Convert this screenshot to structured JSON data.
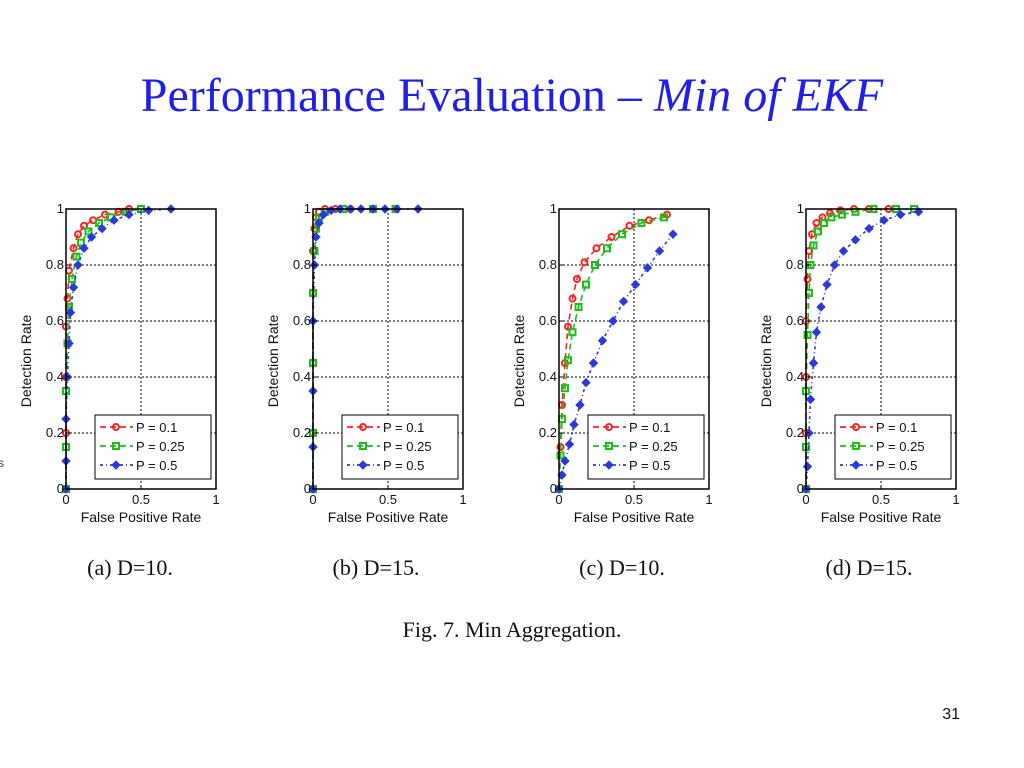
{
  "slide": {
    "title_main": "Performance Evaluation – ",
    "title_emphasis": "Min of EKF",
    "figure_caption": "Fig. 7.   Min Aggregation.",
    "page_number": "31",
    "stray_glyph": "s"
  },
  "chart_data": [
    {
      "type": "line",
      "caption": "(a)  D=10.",
      "xlabel": "False Positive Rate",
      "ylabel": "Detection Rate",
      "xlim": [
        0,
        1
      ],
      "ylim": [
        0,
        1
      ],
      "xticks": [
        "0",
        "0.5",
        "1"
      ],
      "yticks": [
        "0",
        "0.2",
        "0.4",
        "0.6",
        "0.8",
        "1"
      ],
      "grid": true,
      "legend_position": "bottom-right",
      "series": [
        {
          "name": "P = 0.1",
          "color": "#ff2020",
          "marker": "circle",
          "x": [
            0,
            0,
            0,
            0,
            0.01,
            0.02,
            0.05,
            0.08,
            0.12,
            0.18,
            0.26,
            0.35,
            0.42
          ],
          "y": [
            0,
            0.2,
            0.4,
            0.58,
            0.68,
            0.78,
            0.86,
            0.91,
            0.94,
            0.96,
            0.98,
            0.99,
            1.0
          ]
        },
        {
          "name": "P = 0.25",
          "color": "#18c018",
          "marker": "square",
          "x": [
            0,
            0,
            0,
            0.01,
            0.02,
            0.04,
            0.07,
            0.1,
            0.15,
            0.22,
            0.3,
            0.4,
            0.5
          ],
          "y": [
            0,
            0.15,
            0.35,
            0.52,
            0.65,
            0.75,
            0.83,
            0.88,
            0.92,
            0.95,
            0.97,
            0.99,
            1.0
          ]
        },
        {
          "name": "P = 0.5",
          "color": "#2a3ad8",
          "marker": "diamond",
          "x": [
            0,
            0,
            0,
            0.01,
            0.02,
            0.03,
            0.05,
            0.08,
            0.12,
            0.17,
            0.24,
            0.32,
            0.42,
            0.55,
            0.7
          ],
          "y": [
            0,
            0.1,
            0.25,
            0.4,
            0.52,
            0.63,
            0.72,
            0.8,
            0.86,
            0.9,
            0.93,
            0.96,
            0.98,
            0.995,
            1.0
          ]
        }
      ]
    },
    {
      "type": "line",
      "caption": "(b)  D=15.",
      "xlabel": "False Positive Rate",
      "ylabel": "Detection Rate",
      "xlim": [
        0,
        1
      ],
      "ylim": [
        0,
        1
      ],
      "xticks": [
        "0",
        "0.5",
        "1"
      ],
      "yticks": [
        "0",
        "0.2",
        "0.4",
        "0.6",
        "0.8",
        "1"
      ],
      "grid": true,
      "legend_position": "bottom-right",
      "series": [
        {
          "name": "P = 0.1",
          "color": "#ff2020",
          "marker": "circle",
          "x": [
            0,
            0,
            0,
            0,
            0,
            0.01,
            0.02,
            0.04,
            0.08,
            0.15,
            0.25
          ],
          "y": [
            0,
            0.2,
            0.45,
            0.7,
            0.85,
            0.93,
            0.97,
            0.99,
            1.0,
            1.0,
            1.0
          ]
        },
        {
          "name": "P = 0.25",
          "color": "#18c018",
          "marker": "square",
          "x": [
            0,
            0,
            0,
            0,
            0.01,
            0.02,
            0.04,
            0.08,
            0.2,
            0.4,
            0.55
          ],
          "y": [
            0,
            0.2,
            0.45,
            0.7,
            0.85,
            0.93,
            0.97,
            0.99,
            1.0,
            1.0,
            1.0
          ]
        },
        {
          "name": "P = 0.5",
          "color": "#2a3ad8",
          "marker": "diamond",
          "x": [
            0,
            0,
            0,
            0,
            0.01,
            0.02,
            0.04,
            0.07,
            0.12,
            0.18,
            0.25,
            0.32,
            0.4,
            0.48,
            0.56,
            0.7
          ],
          "y": [
            0,
            0.15,
            0.35,
            0.6,
            0.8,
            0.9,
            0.95,
            0.98,
            0.995,
            1.0,
            1.0,
            1.0,
            1.0,
            1.0,
            1.0,
            1.0
          ]
        }
      ]
    },
    {
      "type": "line",
      "caption": "(c)  D=10.",
      "xlabel": "False Positive Rate",
      "ylabel": "Detection Rate",
      "xlim": [
        0,
        1
      ],
      "ylim": [
        0,
        1
      ],
      "xticks": [
        "0",
        "0.5",
        "1"
      ],
      "yticks": [
        "0",
        "0.2",
        "0.4",
        "0.6",
        "0.8",
        "1"
      ],
      "grid": true,
      "legend_position": "bottom-right",
      "series": [
        {
          "name": "P = 0.1",
          "color": "#ff2020",
          "marker": "circle",
          "x": [
            0,
            0.01,
            0.02,
            0.04,
            0.06,
            0.09,
            0.12,
            0.17,
            0.25,
            0.35,
            0.47,
            0.6,
            0.72
          ],
          "y": [
            0,
            0.15,
            0.3,
            0.45,
            0.58,
            0.68,
            0.75,
            0.81,
            0.86,
            0.9,
            0.94,
            0.96,
            0.98
          ]
        },
        {
          "name": "P = 0.25",
          "color": "#18c018",
          "marker": "square",
          "x": [
            0,
            0.01,
            0.02,
            0.04,
            0.06,
            0.09,
            0.13,
            0.18,
            0.24,
            0.32,
            0.42,
            0.55,
            0.7
          ],
          "y": [
            0,
            0.12,
            0.25,
            0.36,
            0.46,
            0.56,
            0.65,
            0.73,
            0.8,
            0.86,
            0.91,
            0.95,
            0.97
          ]
        },
        {
          "name": "P = 0.5",
          "color": "#2a3ad8",
          "marker": "diamond",
          "x": [
            0,
            0.02,
            0.04,
            0.07,
            0.1,
            0.14,
            0.18,
            0.23,
            0.29,
            0.36,
            0.43,
            0.51,
            0.59,
            0.67,
            0.76
          ],
          "y": [
            0,
            0.05,
            0.1,
            0.16,
            0.23,
            0.3,
            0.38,
            0.45,
            0.53,
            0.6,
            0.67,
            0.73,
            0.79,
            0.85,
            0.91
          ]
        }
      ]
    },
    {
      "type": "line",
      "caption": "(d)  D=15.",
      "xlabel": "False Positive Rate",
      "ylabel": "Detection Rate",
      "xlim": [
        0,
        1
      ],
      "ylim": [
        0,
        1
      ],
      "xticks": [
        "0",
        "0.5",
        "1"
      ],
      "yticks": [
        "0",
        "0.2",
        "0.4",
        "0.6",
        "0.8",
        "1"
      ],
      "grid": true,
      "legend_position": "bottom-right",
      "series": [
        {
          "name": "P = 0.1",
          "color": "#ff2020",
          "marker": "circle",
          "x": [
            0,
            0,
            0,
            0,
            0.01,
            0.02,
            0.04,
            0.07,
            0.11,
            0.16,
            0.23,
            0.32,
            0.42,
            0.55
          ],
          "y": [
            0,
            0.2,
            0.4,
            0.6,
            0.75,
            0.85,
            0.91,
            0.95,
            0.97,
            0.985,
            0.995,
            1.0,
            1.0,
            1.0
          ]
        },
        {
          "name": "P = 0.25",
          "color": "#18c018",
          "marker": "square",
          "x": [
            0,
            0,
            0,
            0.01,
            0.02,
            0.03,
            0.05,
            0.08,
            0.12,
            0.17,
            0.24,
            0.33,
            0.45,
            0.6,
            0.72
          ],
          "y": [
            0,
            0.15,
            0.35,
            0.55,
            0.7,
            0.8,
            0.87,
            0.92,
            0.95,
            0.97,
            0.98,
            0.99,
            1.0,
            1.0,
            1.0
          ]
        },
        {
          "name": "P = 0.5",
          "color": "#2a3ad8",
          "marker": "diamond",
          "x": [
            0,
            0.01,
            0.02,
            0.03,
            0.05,
            0.07,
            0.1,
            0.14,
            0.19,
            0.25,
            0.33,
            0.42,
            0.52,
            0.63,
            0.75
          ],
          "y": [
            0,
            0.08,
            0.2,
            0.32,
            0.45,
            0.56,
            0.65,
            0.73,
            0.8,
            0.85,
            0.89,
            0.93,
            0.96,
            0.98,
            0.99
          ]
        }
      ]
    }
  ]
}
